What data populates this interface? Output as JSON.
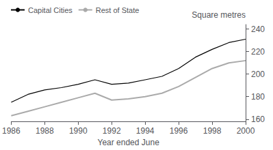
{
  "chart_data": {
    "type": "line",
    "xlabel": "Year ended June",
    "ylabel": "Square metres",
    "x": [
      1986,
      1987,
      1988,
      1989,
      1990,
      1991,
      1992,
      1993,
      1994,
      1995,
      1996,
      1997,
      1998,
      1999,
      2000
    ],
    "series": [
      {
        "name": "Capital Cities",
        "color": "#000000",
        "values": [
          175,
          182,
          186,
          188,
          191,
          195,
          191,
          192,
          195,
          198,
          205,
          215,
          222,
          228,
          231
        ]
      },
      {
        "name": "Rest of State",
        "color": "#aaaaaa",
        "values": [
          163,
          167,
          171,
          175,
          179,
          183,
          177,
          178,
          180,
          183,
          189,
          197,
          205,
          210,
          212
        ]
      }
    ],
    "xlim": [
      1986,
      2000
    ],
    "xticks": [
      1986,
      1988,
      1990,
      1992,
      1994,
      1996,
      1998,
      2000
    ],
    "ylim": [
      158,
      244
    ],
    "yticks": [
      160,
      180,
      200,
      220,
      240
    ],
    "grid": false,
    "legend": "upper left"
  }
}
